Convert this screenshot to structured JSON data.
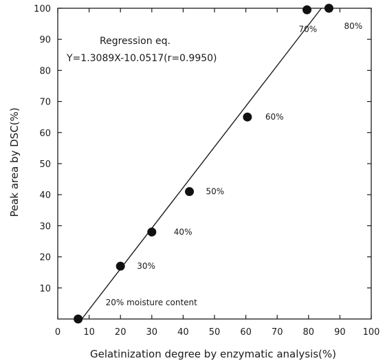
{
  "chart_data": {
    "type": "scatter",
    "xlabel": "Gelatinization degree by enzymatic analysis(%)",
    "ylabel": "Peak area by DSC(%)",
    "xlim": [
      0,
      100
    ],
    "ylim": [
      0,
      100
    ],
    "xticks": [
      0,
      10,
      20,
      30,
      40,
      50,
      60,
      70,
      80,
      90,
      100
    ],
    "yticks": [
      10,
      20,
      30,
      40,
      50,
      60,
      70,
      80,
      90,
      100
    ],
    "grid": false,
    "points": [
      {
        "x": 6.5,
        "y": 0,
        "label": "20% moisture content"
      },
      {
        "x": 20,
        "y": 17,
        "label": "30%"
      },
      {
        "x": 30,
        "y": 28,
        "label": "40%"
      },
      {
        "x": 42,
        "y": 41,
        "label": "50%"
      },
      {
        "x": 60.5,
        "y": 65,
        "label": "60%"
      },
      {
        "x": 79.5,
        "y": 99.5,
        "label": "70%"
      },
      {
        "x": 86.5,
        "y": 100,
        "label": "80%"
      }
    ],
    "regression": {
      "title": "Regression eq.",
      "equation": "Y=1.3089X-10.0517(r=0.9950)",
      "slope": 1.3089,
      "intercept": -10.0517,
      "x_range": [
        7.7,
        84.1
      ]
    }
  }
}
